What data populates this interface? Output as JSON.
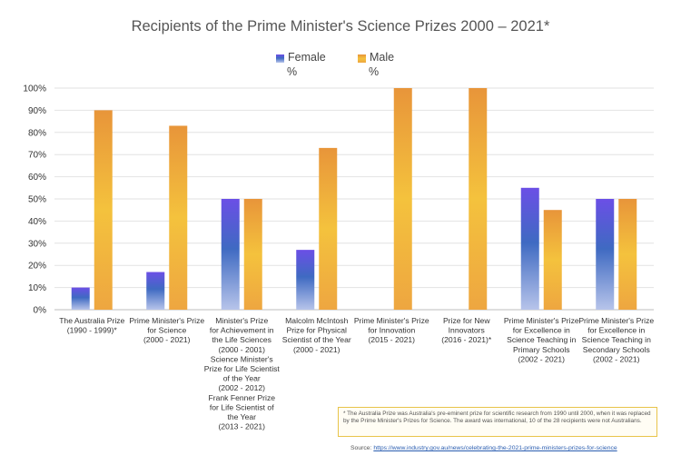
{
  "chart_data": {
    "type": "bar",
    "title": "Recipients of the Prime Minister's Science Prizes 2000 – 2021*",
    "xlabel": "",
    "ylabel": "",
    "ylim": [
      0,
      100
    ],
    "y_ticks": [
      "0%",
      "10%",
      "20%",
      "30%",
      "40%",
      "50%",
      "60%",
      "70%",
      "80%",
      "90%",
      "100%"
    ],
    "y_tick_values": [
      0,
      10,
      20,
      30,
      40,
      50,
      60,
      70,
      80,
      90,
      100
    ],
    "legend_position": "top-center",
    "categories": [
      [
        "The Australia Prize",
        "(1990 - 1999)*"
      ],
      [
        "Prime Minister's Prize",
        "for Science",
        "(2000 - 2021)"
      ],
      [
        "Minister's Prize",
        "for Achievement in",
        "the Life Sciences",
        "(2000 - 2001)",
        "Science Minister's",
        "Prize for Life Scientist",
        "of the Year",
        "(2002 - 2012)",
        "Frank Fenner Prize",
        "for Life Scientist of",
        "the Year",
        "(2013 - 2021)"
      ],
      [
        "Malcolm McIntosh",
        "Prize for Physical",
        "Scientist of the Year",
        "(2000 - 2021)"
      ],
      [
        "Prime Minister's Prize",
        "for Innovation",
        "(2015 - 2021)"
      ],
      [
        "Prize for New",
        "Innovators",
        "(2016 - 2021)*"
      ],
      [
        "Prime Minister's Prize",
        "for Excellence in",
        "Science Teaching in",
        "Primary Schools",
        "(2002 - 2021)"
      ],
      [
        "Prime Minister's Prize",
        "for Excellence in",
        "Science Teaching in",
        "Secondary Schools",
        "(2002 - 2021)"
      ]
    ],
    "series": [
      {
        "name": "Female %",
        "legend_lines": [
          "Female",
          "%"
        ],
        "values": [
          10,
          17,
          50,
          27,
          0,
          0,
          55,
          50
        ]
      },
      {
        "name": "Male %",
        "legend_lines": [
          "Male",
          "%"
        ],
        "values": [
          90,
          83,
          50,
          73,
          100,
          100,
          45,
          50
        ]
      }
    ],
    "colors": {
      "female_top": "#6b4fe6",
      "female_mid": "#3f6ac2",
      "female_bottom": "#b7c4ea",
      "male_top": "#e8953a",
      "male_mid": "#f4c23d",
      "male_bottom": "#eea640"
    }
  },
  "footnote": "* The Australia Prize was Australia's pre-eminent prize for scientific research from 1990 until 2000, when it was replaced by the Prime Minister's Prizes for Science. The award was international, 10 of the 28 recipients were not Australians.",
  "source": {
    "label": "Source:",
    "url_text": "https://www.industry.gov.au/news/celebrating-the-2021-prime-ministers-prizes-for-science"
  }
}
